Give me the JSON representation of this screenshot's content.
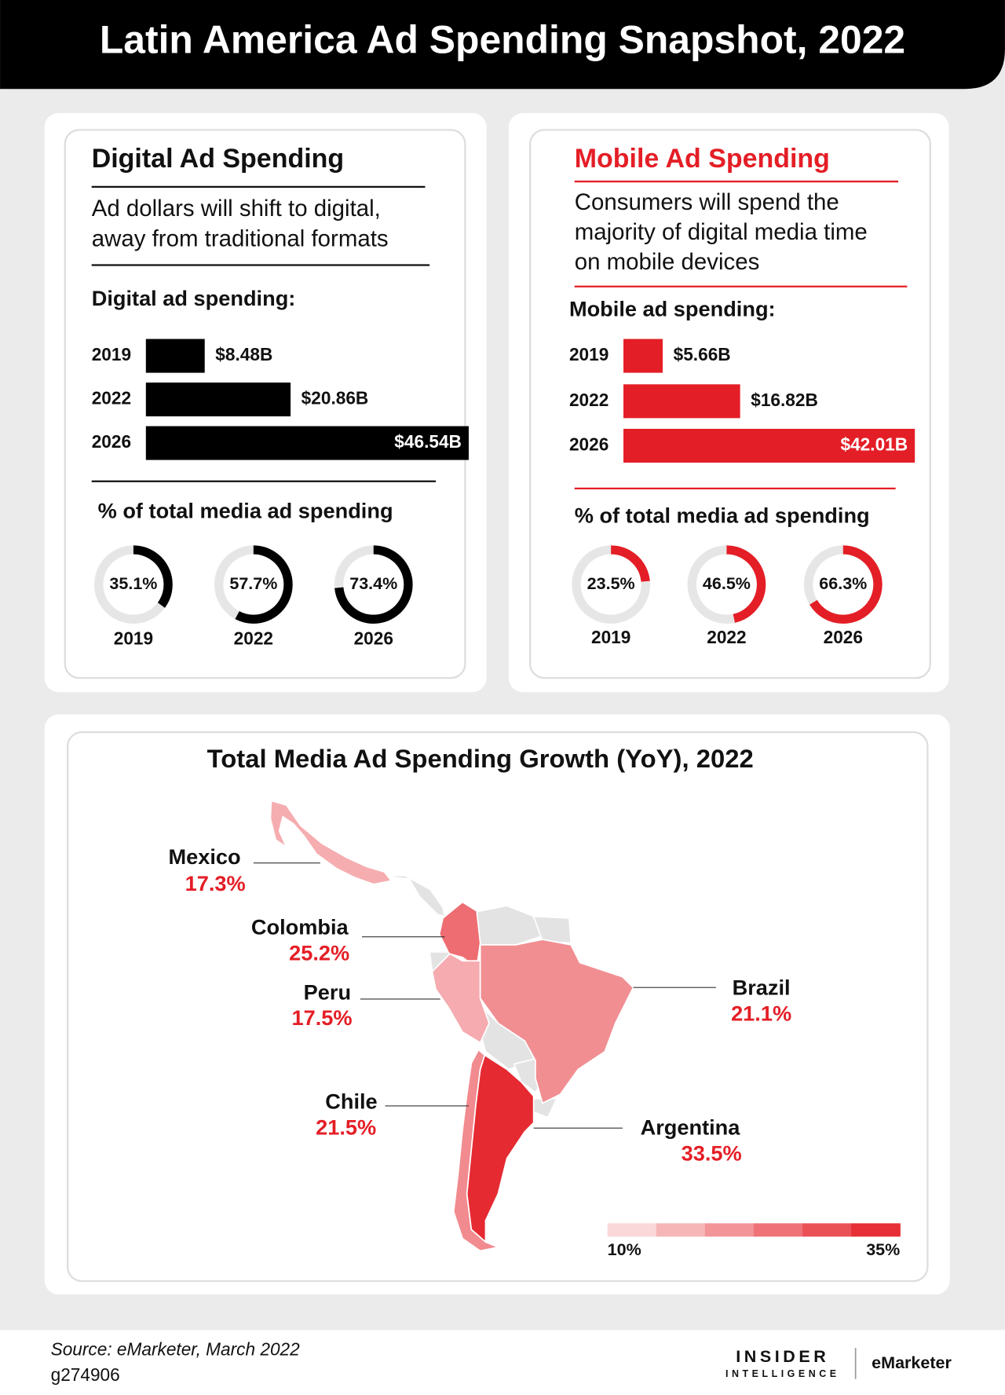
{
  "title": "Latin America Ad Spending Snapshot, 2022",
  "panels": [
    {
      "title": "Digital Ad Spending",
      "color": "#000000",
      "subtitle": [
        "Ad dollars will shift to digital,",
        "away from traditional formats"
      ],
      "bar_label": "Digital ad spending:",
      "categories": [
        "2019",
        "2022",
        "2026"
      ],
      "values": [
        8.48,
        20.86,
        46.54
      ],
      "value_labels": [
        "$8.48B",
        "$20.86B",
        "$46.54B"
      ],
      "share_label": "% of total media ad spending",
      "share_values": [
        35.1,
        57.7,
        73.4
      ],
      "share_labels": [
        "35.1%",
        "57.7%",
        "73.4%"
      ]
    },
    {
      "title": "Mobile Ad Spending",
      "color": "#e41e26",
      "subtitle": [
        "Consumers will spend the",
        "majority of digital media time",
        "on mobile devices"
      ],
      "bar_label": "Mobile ad spending:",
      "categories": [
        "2019",
        "2022",
        "2026"
      ],
      "values": [
        5.66,
        16.82,
        42.01
      ],
      "value_labels": [
        "$5.66B",
        "$16.82B",
        "$42.01B"
      ],
      "share_label": "% of total media ad spending",
      "share_values": [
        23.5,
        46.5,
        66.3
      ],
      "share_labels": [
        "23.5%",
        "46.5%",
        "66.3%"
      ]
    }
  ],
  "map": {
    "title": "Total Media Ad Spending Growth (YoY), 2022",
    "countries": [
      {
        "name": "Mexico",
        "value": 17.3,
        "value_label": "17.3%"
      },
      {
        "name": "Colombia",
        "value": 25.2,
        "value_label": "25.2%"
      },
      {
        "name": "Peru",
        "value": 17.5,
        "value_label": "17.5%"
      },
      {
        "name": "Brazil",
        "value": 21.1,
        "value_label": "21.1%"
      },
      {
        "name": "Chile",
        "value": 21.5,
        "value_label": "21.5%"
      },
      {
        "name": "Argentina",
        "value": 33.5,
        "value_label": "33.5%"
      }
    ],
    "scale": [
      {
        "value": 10,
        "label": "10%"
      },
      {
        "value": 35,
        "label": "35%"
      }
    ],
    "color": "#e41e26"
  },
  "footer": {
    "source": "Source: eMarketer, March 2022",
    "id": "g274906",
    "logo": [
      "INSIDER",
      "INTELLIGENCE",
      "eMarketer"
    ]
  }
}
